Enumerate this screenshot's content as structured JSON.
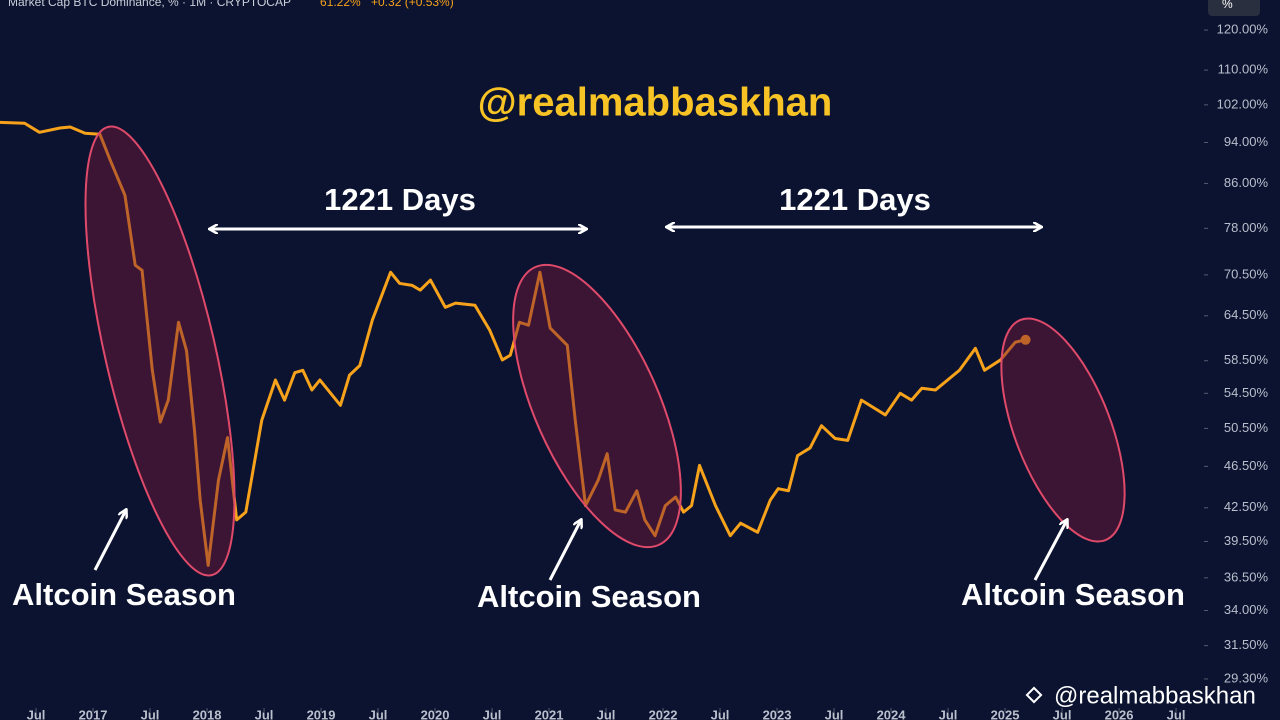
{
  "chart_data": {
    "type": "line",
    "title": "Market Cap BTC Dominance, % · 1M · CRYPTOCAP",
    "price_text": "61.22%",
    "change_text": "+0.32 (+0.53%)",
    "unit_button": "%",
    "handle": "@realmabbaskhan",
    "watermark": "@realmabbaskhan",
    "span_labels": [
      "1221 Days",
      "1221 Days"
    ],
    "season_labels": [
      "Altcoin Season",
      "Altcoin Season",
      "Altcoin Season"
    ],
    "log_scale": true,
    "series": [
      {
        "name": "BTC Dominance",
        "color": "#f7a21b",
        "x": [
          2016.18,
          2016.4,
          2016.53,
          2016.71,
          2016.8,
          2016.93,
          2017.06,
          2017.15,
          2017.28,
          2017.37,
          2017.43,
          2017.52,
          2017.59,
          2017.66,
          2017.75,
          2017.82,
          2017.89,
          2017.94,
          2018.01,
          2018.1,
          2018.18,
          2018.26,
          2018.34,
          2018.48,
          2018.6,
          2018.68,
          2018.77,
          2018.84,
          2018.92,
          2018.99,
          2019.17,
          2019.25,
          2019.34,
          2019.45,
          2019.61,
          2019.69,
          2019.8,
          2019.87,
          2019.96,
          2020.09,
          2020.18,
          2020.35,
          2020.48,
          2020.59,
          2020.66,
          2020.74,
          2020.82,
          2020.92,
          2021.01,
          2021.16,
          2021.23,
          2021.32,
          2021.43,
          2021.51,
          2021.58,
          2021.67,
          2021.77,
          2021.84,
          2021.93,
          2022.02,
          2022.11,
          2022.18,
          2022.25,
          2022.32,
          2022.46,
          2022.59,
          2022.68,
          2022.83,
          2022.94,
          2023.01,
          2023.1,
          2023.18,
          2023.29,
          2023.39,
          2023.51,
          2023.62,
          2023.74,
          2023.95,
          2024.08,
          2024.18,
          2024.27,
          2024.39,
          2024.6,
          2024.74,
          2024.82,
          2024.96,
          2025.09,
          2025.18
        ],
        "values": [
          98.2,
          98.0,
          96.1,
          97.0,
          97.2,
          95.9,
          95.7,
          90.5,
          83.8,
          72.0,
          71.2,
          57.3,
          51.2,
          53.7,
          63.6,
          59.8,
          50.3,
          43.2,
          37.5,
          45.1,
          49.5,
          41.4,
          42.1,
          51.4,
          56.1,
          53.7,
          57.0,
          57.3,
          54.9,
          56.1,
          53.1,
          56.7,
          57.9,
          63.9,
          70.9,
          69.2,
          68.9,
          68.2,
          69.7,
          65.7,
          66.3,
          66.0,
          62.5,
          58.6,
          59.2,
          63.6,
          63.2,
          70.9,
          62.8,
          60.5,
          51.4,
          42.7,
          45.1,
          47.8,
          42.3,
          42.1,
          44.1,
          41.4,
          40.0,
          42.7,
          43.5,
          42.1,
          42.7,
          46.6,
          42.7,
          40.0,
          41.1,
          40.3,
          43.2,
          44.3,
          44.1,
          47.6,
          48.4,
          50.8,
          49.4,
          49.2,
          53.7,
          52.0,
          54.5,
          53.7,
          55.1,
          54.9,
          57.3,
          60.1,
          57.3,
          58.6,
          60.9,
          61.22
        ]
      }
    ],
    "xlim": [
      2016.184,
      2026.71
    ],
    "xticks": [
      {
        "value": 2016.5,
        "label": "Jul"
      },
      2017,
      {
        "value": 2017.5,
        "label": "Jul"
      },
      2018,
      {
        "value": 2018.5,
        "label": "Jul"
      },
      2019,
      {
        "value": 2019.5,
        "label": "Jul"
      },
      2020,
      {
        "value": 2020.5,
        "label": "Jul"
      },
      2021,
      {
        "value": 2021.5,
        "label": "Jul"
      },
      2022,
      {
        "value": 2022.5,
        "label": "Jul"
      },
      2023,
      {
        "value": 2023.5,
        "label": "Jul"
      },
      2024,
      {
        "value": 2024.5,
        "label": "Jul"
      },
      2025,
      {
        "value": 2025.5,
        "label": "Jul"
      },
      2026,
      {
        "value": 2026.5,
        "label": "Jul"
      }
    ],
    "ylim": [
      26.8,
      128.1
    ],
    "yticks": [
      {
        "value": 120,
        "label": "120.00%"
      },
      {
        "value": 110,
        "label": "110.00%"
      },
      {
        "value": 102,
        "label": "102.00%"
      },
      {
        "value": 94,
        "label": "94.00%"
      },
      {
        "value": 86,
        "label": "86.00%"
      },
      {
        "value": 78,
        "label": "78.00%"
      },
      {
        "value": 70.5,
        "label": "70.50%"
      },
      {
        "value": 64.5,
        "label": "64.50%"
      },
      {
        "value": 58.5,
        "label": "58.50%"
      },
      {
        "value": 54.5,
        "label": "54.50%"
      },
      {
        "value": 50.5,
        "label": "50.50%"
      },
      {
        "value": 46.5,
        "label": "46.50%"
      },
      {
        "value": 42.5,
        "label": "42.50%"
      },
      {
        "value": 39.5,
        "label": "39.50%"
      },
      {
        "value": 36.5,
        "label": "36.50%"
      },
      {
        "value": 34,
        "label": "34.00%"
      },
      {
        "value": 31.5,
        "label": "31.50%"
      },
      {
        "value": 29.3,
        "label": "29.30%"
      }
    ]
  }
}
